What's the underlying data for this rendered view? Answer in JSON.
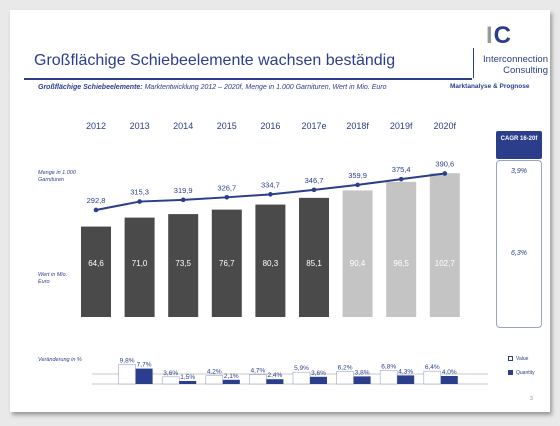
{
  "header": {
    "title": "Großflächige Schiebeelemente wachsen beständig",
    "subtitle_bold": "Großflächige Schiebeelemente:",
    "subtitle_rest": " Marktentwicklung 2012 – 2020f, Menge in 1.000 Garnituren, Wert in Mio. Euro"
  },
  "logo": {
    "mark_left": "I",
    "mark_right": "C",
    "name_line1": "Interconnection",
    "name_line2": "Consulting",
    "tagline": "Marktanalyse & Prognose"
  },
  "labels": {
    "quantity": "Menge in 1.000 Garnituren",
    "value": "Wert in Mio. Euro",
    "change": "Veränderung in %",
    "legend_value": "Value",
    "legend_quantity": "Quantity",
    "page": "3"
  },
  "cagr": {
    "header": "CAGR 16-20f",
    "quantity": "3,9%",
    "value": "6,3%"
  },
  "colors": {
    "brand": "#2b3e8c",
    "bar_actual": "#4a4a4a",
    "bar_forecast": "#c4c4c4"
  },
  "chart_data": {
    "type": "bar",
    "categories": [
      "2012",
      "2013",
      "2014",
      "2015",
      "2016",
      "2017e",
      "2018f",
      "2019f",
      "2020f"
    ],
    "series": [
      {
        "name": "Wert in Mio. Euro",
        "values": [
          64.6,
          71.0,
          73.5,
          76.7,
          80.3,
          85.1,
          90.4,
          96.5,
          102.7
        ],
        "labels": [
          "64,6",
          "71,0",
          "73,5",
          "76,7",
          "80,3",
          "85,1",
          "90,4",
          "96,5",
          "102,7"
        ]
      },
      {
        "name": "Menge in 1.000 Garnituren",
        "values": [
          292.8,
          315.3,
          319.9,
          326.7,
          334.7,
          346.7,
          359.9,
          375.4,
          390.6
        ],
        "labels": [
          "292,8",
          "315,3",
          "319,9",
          "326,7",
          "334,7",
          "346,7",
          "359,9",
          "375,4",
          "390,6"
        ]
      }
    ],
    "forecast_from_index": 6,
    "change": {
      "value": [
        9.8,
        3.6,
        4.2,
        4.7,
        5.9,
        6.2,
        6.8,
        6.4
      ],
      "value_labels": [
        "9,8%",
        "3,6%",
        "4,2%",
        "4,7%",
        "5,9%",
        "6,2%",
        "6,8%",
        "6,4%"
      ],
      "quantity": [
        7.7,
        1.5,
        2.1,
        2.4,
        3.6,
        3.8,
        4.3,
        4.0
      ],
      "quantity_labels": [
        "7,7%",
        "1,5%",
        "2,1%",
        "2,4%",
        "3,6%",
        "3,8%",
        "4,3%",
        "4,0%"
      ]
    }
  }
}
